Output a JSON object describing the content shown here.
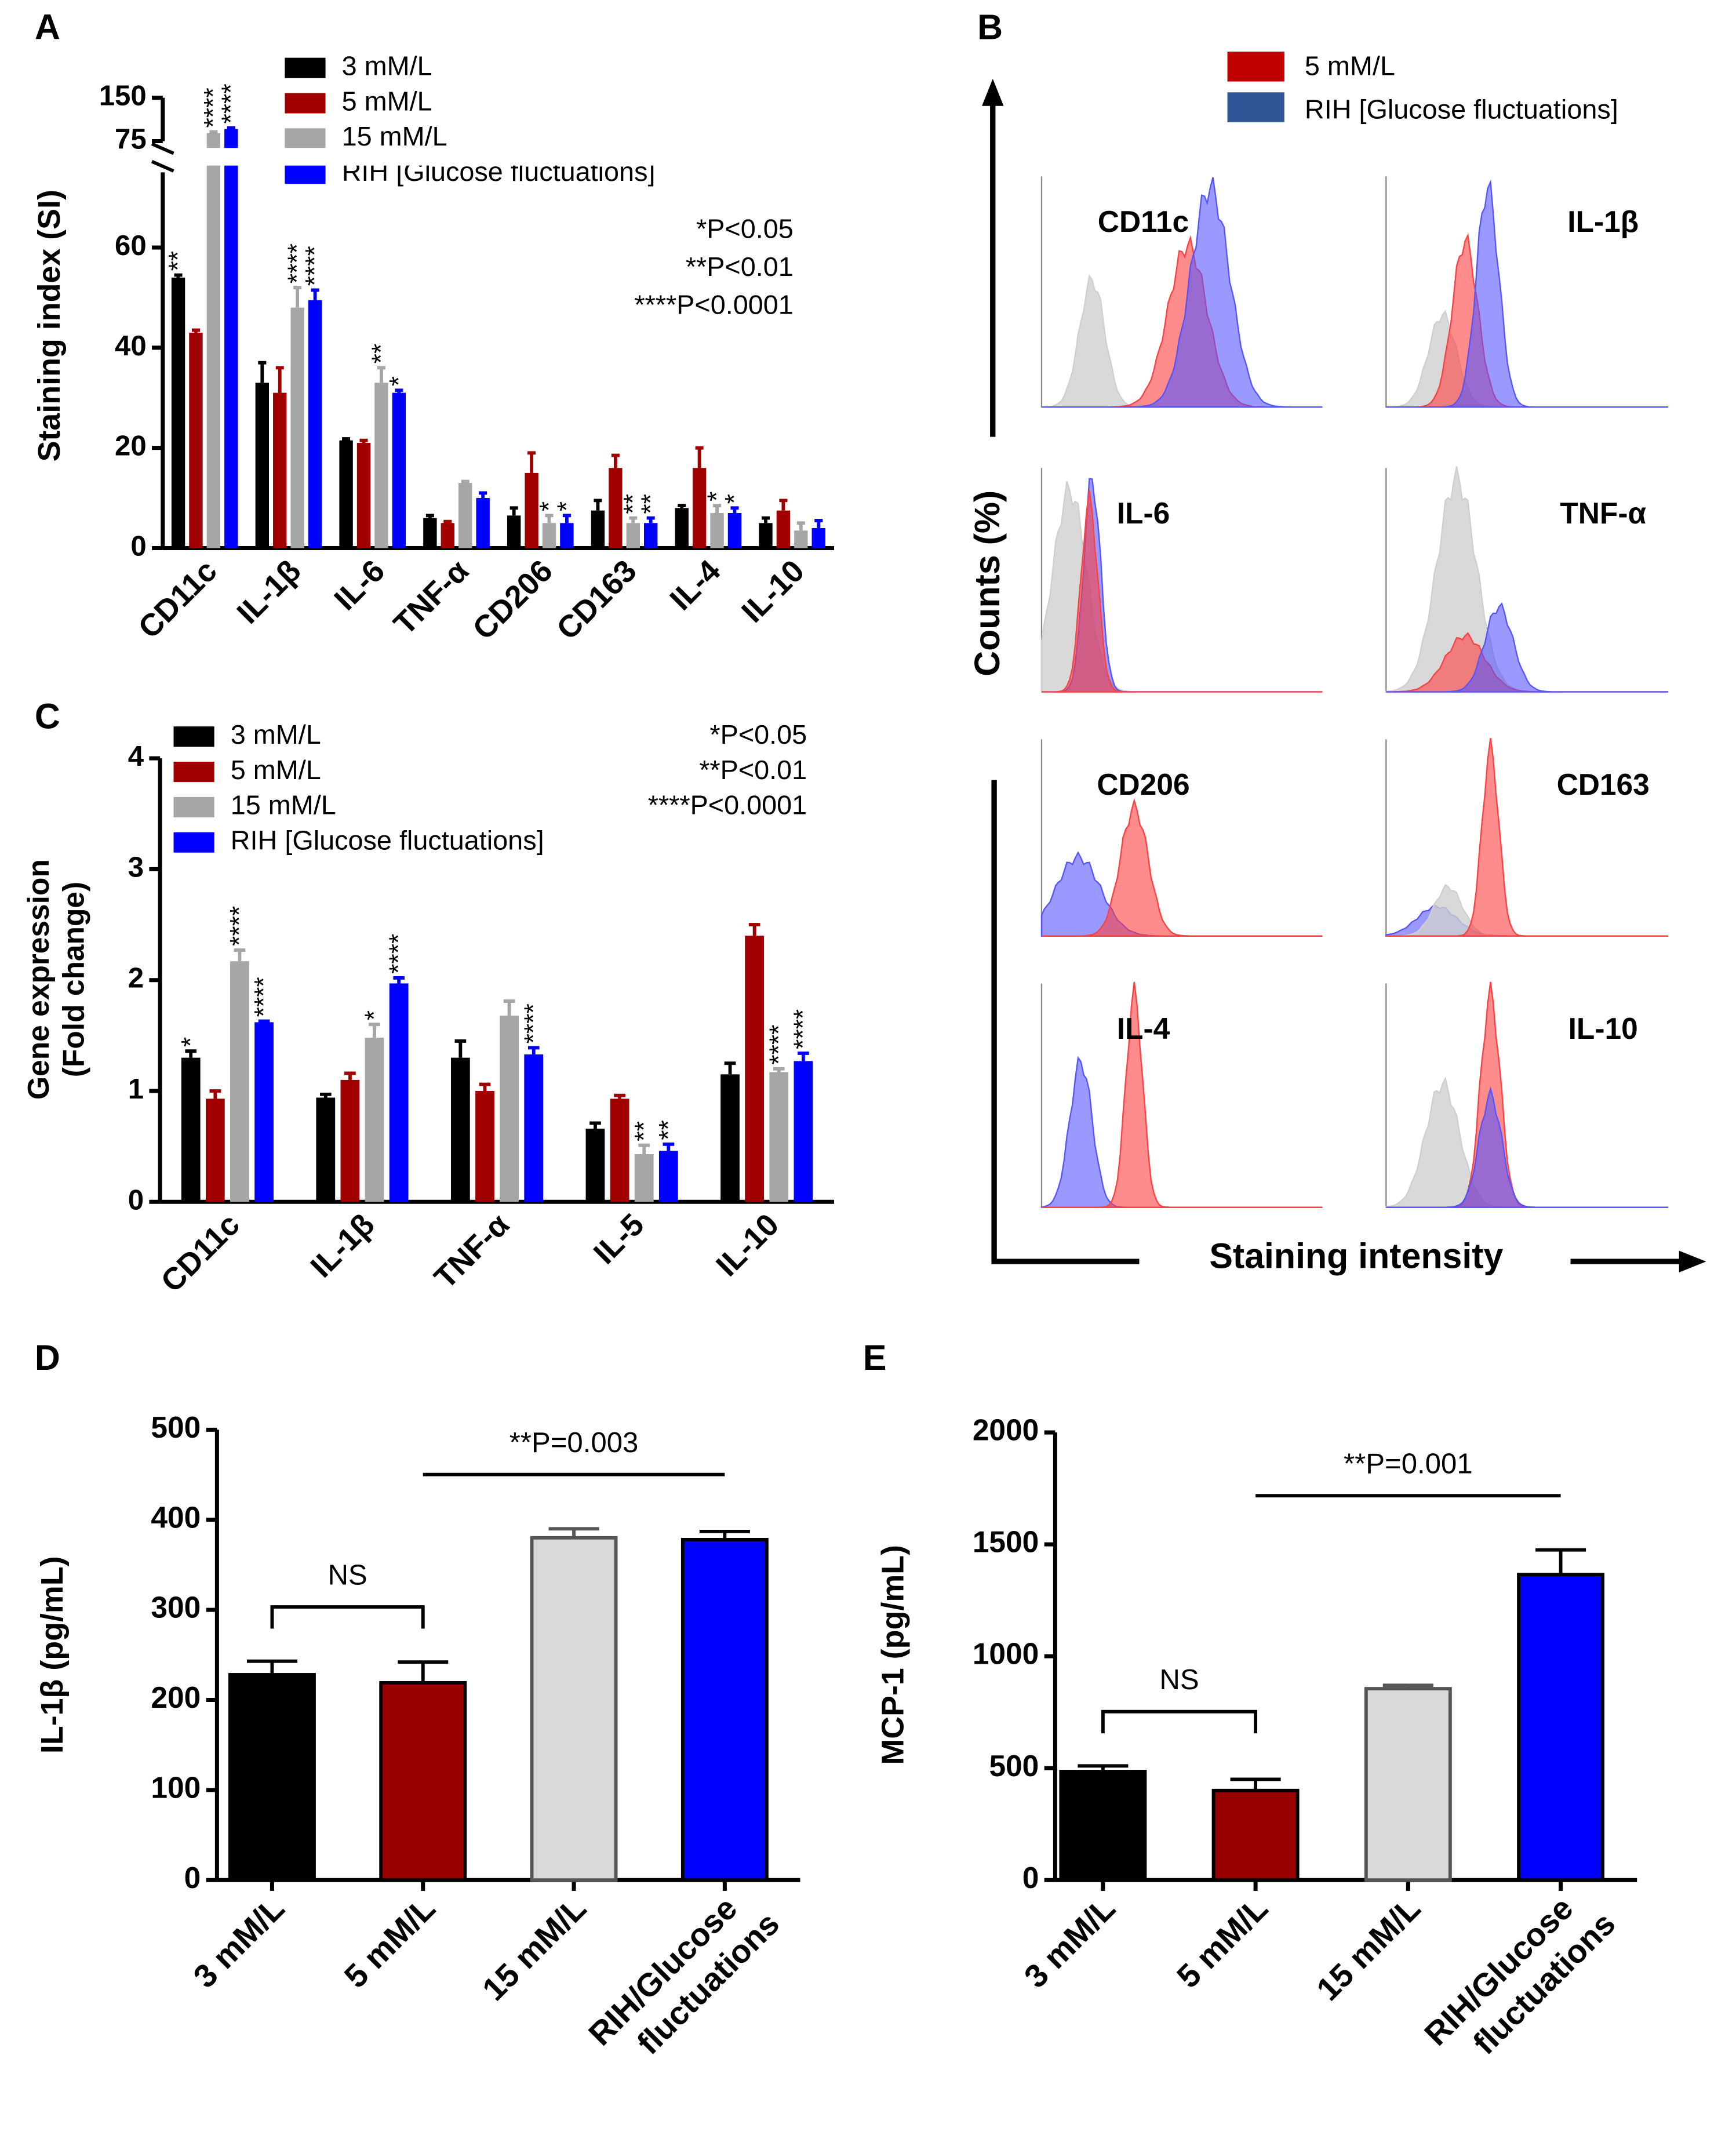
{
  "chart_data": [
    {
      "panel": "A",
      "type": "bar",
      "ylabel": "Staining index (SI)",
      "categories": [
        "CD11c",
        "IL-1β",
        "IL-6",
        "TNF-α",
        "CD206",
        "CD163",
        "IL-4",
        "IL-10"
      ],
      "series": [
        {
          "name": "3 mM/L",
          "color": "#000000",
          "values": [
            54,
            33,
            21.5,
            6,
            6.5,
            7.5,
            8,
            5
          ],
          "errors": [
            0.5,
            4,
            0.3,
            0.5,
            1.5,
            2,
            0.5,
            1
          ],
          "significance": [
            "**",
            null,
            null,
            null,
            null,
            null,
            null,
            null
          ]
        },
        {
          "name": "5 mM/L",
          "color": "#a00000",
          "values": [
            43,
            31,
            21,
            5,
            15,
            16,
            16,
            7.5
          ],
          "errors": [
            0.5,
            5,
            0.5,
            0.3,
            4,
            2.5,
            4,
            2
          ],
          "significance": [
            null,
            null,
            null,
            null,
            null,
            null,
            null,
            null
          ]
        },
        {
          "name": "15 mM/L",
          "color": "#a6a6a6",
          "values": [
            89,
            48,
            33,
            13,
            5,
            5,
            7,
            3.5
          ],
          "errors": [
            2,
            4,
            3,
            0.3,
            1.5,
            1,
            1.5,
            1.5
          ],
          "significance": [
            "****",
            "****",
            "**",
            null,
            "*",
            "**",
            "*",
            null
          ]
        },
        {
          "name": "RIH [Glucose fluctuations]",
          "color": "#0000ff",
          "values": [
            96,
            49.5,
            31,
            10,
            5,
            5,
            7,
            4
          ],
          "errors": [
            2,
            2,
            0.5,
            1,
            1.5,
            1,
            1,
            1.5
          ],
          "significance": [
            "****",
            "****",
            "*",
            null,
            "*",
            "**",
            "*",
            null
          ]
        }
      ],
      "notes": [
        "*P<0.05",
        "**P<0.01",
        "****P<0.0001"
      ],
      "ylim": [
        0,
        150
      ],
      "axis_break": 75,
      "yticks": [
        0,
        20,
        40,
        60,
        75,
        150
      ]
    },
    {
      "panel": "B",
      "type": "flow",
      "ylabel": "Counts (%)",
      "xlabel": "Staining intensity",
      "series": [
        {
          "name": "5 mM/L",
          "color": "#c00000"
        },
        {
          "name": "RIH [Glucose fluctuations]",
          "color": "#2f5597"
        }
      ],
      "panels": [
        "CD11c",
        "IL-1β",
        "IL-6",
        "TNF-α",
        "CD206",
        "CD163",
        "IL-4",
        "IL-10"
      ]
    },
    {
      "panel": "C",
      "type": "bar",
      "ylabel": [
        "Gene expression",
        "(Fold change)"
      ],
      "categories": [
        "CD11c",
        "IL-1β",
        "TNF-α",
        "IL-5",
        "IL-10"
      ],
      "series": [
        {
          "name": "3 mM/L",
          "color": "#000000",
          "values": [
            1.3,
            0.94,
            1.3,
            0.66,
            1.15
          ],
          "errors": [
            0.06,
            0.03,
            0.15,
            0.05,
            0.1
          ],
          "significance": [
            "*",
            null,
            null,
            null,
            null
          ]
        },
        {
          "name": "5 mM/L",
          "color": "#a00000",
          "values": [
            0.93,
            1.1,
            1.0,
            0.93,
            2.4
          ],
          "errors": [
            0.07,
            0.06,
            0.06,
            0.03,
            0.1
          ],
          "significance": [
            null,
            null,
            null,
            null,
            null
          ]
        },
        {
          "name": "15 mM/L",
          "color": "#a6a6a6",
          "values": [
            2.17,
            1.48,
            1.68,
            0.43,
            1.17
          ],
          "errors": [
            0.1,
            0.12,
            0.13,
            0.08,
            0.03
          ],
          "significance": [
            "****",
            "*",
            null,
            "**",
            "****"
          ]
        },
        {
          "name": "RIH [Glucose fluctuations]",
          "color": "#0000ff",
          "values": [
            1.62,
            1.97,
            1.33,
            0.46,
            1.27
          ],
          "errors": [
            0.01,
            0.05,
            0.06,
            0.06,
            0.07
          ],
          "significance": [
            "****",
            "****",
            "****",
            "**",
            "****"
          ]
        }
      ],
      "notes": [
        "*P<0.05",
        "**P<0.01",
        "****P<0.0001"
      ],
      "ylim": [
        0,
        4
      ],
      "yticks": [
        0,
        1,
        2,
        3,
        4
      ]
    },
    {
      "panel": "D",
      "type": "bar",
      "ylabel": "IL-1β (pg/mL)",
      "categories": [
        "3 mM/L",
        "5 mM/L",
        "15 mM/L",
        "RIH/Glucose fluctuations"
      ],
      "values": [
        228,
        219,
        380,
        378
      ],
      "errors": [
        15,
        23,
        10,
        9
      ],
      "colors": [
        "#000000",
        "#990000",
        "#d9d9d9",
        "#0000ff"
      ],
      "annotations": [
        {
          "text": "NS",
          "between": [
            0,
            1
          ],
          "style": "bracket"
        },
        {
          "text": "**P=0.003",
          "between": [
            1,
            3
          ],
          "style": "line"
        }
      ],
      "ylim": [
        0,
        500
      ],
      "yticks": [
        0,
        100,
        200,
        300,
        400,
        500
      ]
    },
    {
      "panel": "E",
      "type": "bar",
      "ylabel": "MCP-1 (pg/mL)",
      "categories": [
        "3 mM/L",
        "5 mM/L",
        "15 mM/L",
        "RIH/Glucose fluctuations"
      ],
      "values": [
        485,
        400,
        855,
        1365
      ],
      "errors": [
        25,
        50,
        15,
        110
      ],
      "colors": [
        "#000000",
        "#990000",
        "#d9d9d9",
        "#0000ff"
      ],
      "annotations": [
        {
          "text": "NS",
          "between": [
            0,
            1
          ],
          "style": "bracket"
        },
        {
          "text": "**P=0.001",
          "between": [
            1,
            3
          ],
          "style": "line"
        }
      ],
      "ylim": [
        0,
        2000
      ],
      "yticks": [
        0,
        500,
        1000,
        1500,
        2000
      ]
    }
  ]
}
